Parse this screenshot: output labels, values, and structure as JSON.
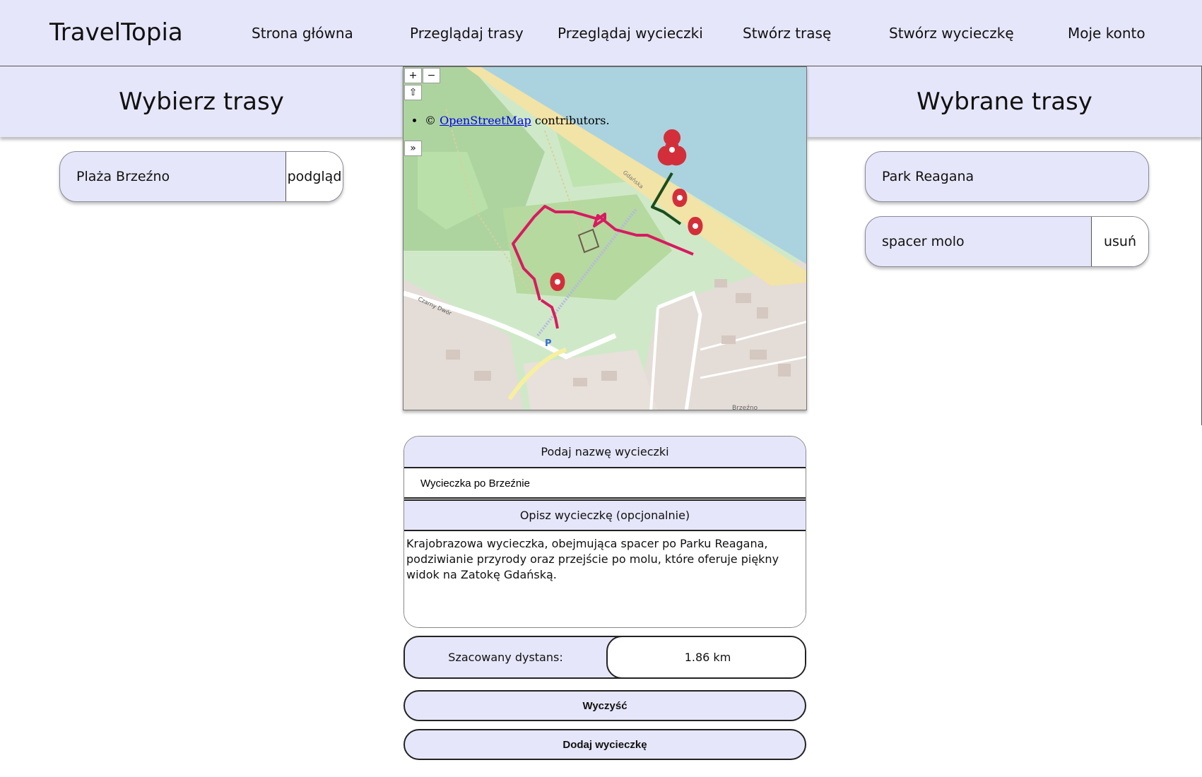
{
  "header": {
    "logo": "TravelTopia",
    "nav": [
      {
        "label": "Strona główna"
      },
      {
        "label": "Przeglądaj trasy"
      },
      {
        "label": "Przeglądaj wycieczki"
      },
      {
        "label": "Stwórz trasę"
      },
      {
        "label": "Stwórz wycieczkę"
      },
      {
        "label": "Moje konto"
      }
    ]
  },
  "left_panel": {
    "title": "Wybierz trasy",
    "routes": [
      {
        "name": "Plaża Brzeźno",
        "action": "podgląd"
      }
    ]
  },
  "right_panel": {
    "title": "Wybrane trasy",
    "routes": [
      {
        "name": "Park Reagana",
        "action": ""
      },
      {
        "name": "spacer molo",
        "action": "usuń"
      }
    ]
  },
  "map": {
    "zoom_in": "+",
    "zoom_out": "−",
    "home": "⇧",
    "layers": "»",
    "attribution_prefix": "©",
    "attribution_link": "OpenStreetMap",
    "attribution_suffix": "contributors.",
    "colors": {
      "sea": "#aad3df",
      "beach": "#f2e3a7",
      "park": "#c8e6b0",
      "forest": "#a8d19a",
      "urban": "#e4dcd6",
      "route_main": "#d81b60",
      "route_secondary": "#1b4d1b",
      "marker": "#d32f3a"
    },
    "labels": [
      "Gdańska",
      "Czarny Dwór",
      "Brzeźno",
      "P"
    ]
  },
  "form": {
    "name_label": "Podaj nazwę wycieczki",
    "name_value": "Wycieczka po Brzeźnie",
    "desc_label": "Opisz wycieczkę (opcjonalnie)",
    "desc_value": "Krajobrazowa wycieczka, obejmująca spacer po Parku Reagana, podziwianie przyrody oraz przejście po molu, które oferuje piękny widok na Zatokę Gdańską.",
    "distance_label": "Szacowany dystans:",
    "distance_value": "1.86 km",
    "clear_button": "Wyczyść",
    "submit_button": "Dodaj wycieczkę"
  },
  "theme": {
    "accent_bg": "#e6e6fa"
  }
}
